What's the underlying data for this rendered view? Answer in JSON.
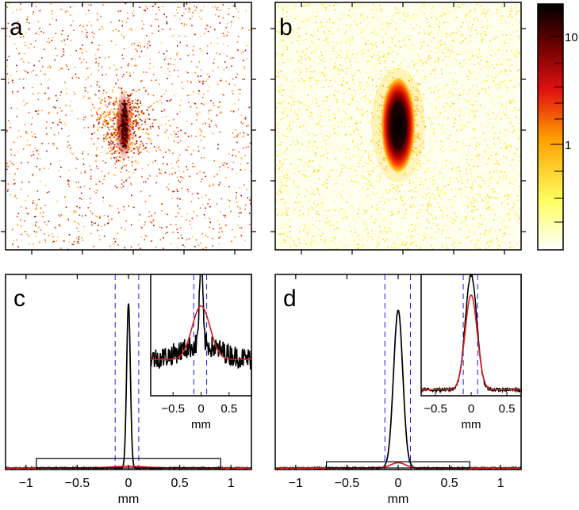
{
  "figure": {
    "panel_labels": [
      "a",
      "b",
      "c",
      "d"
    ],
    "colorbar": {
      "colormap": "hot (white-yellow-red-black)",
      "scale": "log",
      "tick_labels": [
        "10",
        "1"
      ]
    },
    "colors": {
      "profile": "#000000",
      "fit": "#d81e1e",
      "window": "#1a1aff"
    }
  },
  "chart_data": [
    {
      "panel": "a",
      "type": "heatmap",
      "description_visible": "sparse noisy image with narrow vertical elongated central spot",
      "spot": {
        "x": 0.0,
        "y": 0.0
      }
    },
    {
      "panel": "b",
      "type": "heatmap",
      "description_visible": "smooth image with elongated vertical ellipse on yellow background",
      "spot": {
        "x": 0.0,
        "y": 0.0
      }
    },
    {
      "panel": "c",
      "type": "line",
      "xlabel": "mm",
      "xlim": [
        -1.2,
        1.2
      ],
      "ylim": [
        0,
        1.0
      ],
      "xticks": [
        -1,
        -0.5,
        0,
        0.5,
        1
      ],
      "xtick_labels": [
        "−1",
        "−0.5",
        "0",
        "0.5",
        "1"
      ],
      "series": [
        {
          "name": "profile",
          "color": "#000000",
          "peak_x": 0.0,
          "peak": 0.94,
          "width": 0.018,
          "baseline": 0.0
        },
        {
          "name": "fit",
          "color": "#d81e1e",
          "peak_x": 0.0,
          "peak": 0.01,
          "width": 0.16,
          "baseline": 0.0
        }
      ],
      "window_lines": [
        -0.13,
        0.1
      ],
      "zoom_box": {
        "x": [
          -0.9,
          0.9
        ],
        "y": [
          0.0,
          0.04
        ]
      },
      "inset": {
        "xlim": [
          -0.9,
          0.9
        ],
        "xticks": [
          -0.5,
          0,
          0.5
        ],
        "xtick_labels": [
          "−0.5",
          "0",
          "0.5"
        ],
        "xlabel": "mm",
        "window_lines": [
          -0.13,
          0.1
        ],
        "series": [
          {
            "name": "profile",
            "color": "#000000",
            "peak": 0.7,
            "width": 0.15,
            "baseline": 0.3,
            "noise": 0.09
          },
          {
            "name": "fit",
            "color": "#d81e1e",
            "peak": 0.44,
            "width": 0.16,
            "baseline": 0.3
          }
        ]
      }
    },
    {
      "panel": "d",
      "type": "line",
      "xlabel": "mm",
      "xlim": [
        -1.2,
        1.2
      ],
      "ylim": [
        0,
        1.0
      ],
      "xticks": [
        -1,
        -0.5,
        0,
        0.5,
        1
      ],
      "xtick_labels": [
        "−1",
        "−0.5",
        "0",
        "0.5",
        "1"
      ],
      "series": [
        {
          "name": "profile",
          "color": "#000000",
          "peak_x": 0.0,
          "peak": 0.9,
          "width": 0.045,
          "baseline": 0.0
        },
        {
          "name": "fit",
          "color": "#d81e1e",
          "peak_x": 0.0,
          "peak": 0.03,
          "width": 0.07,
          "baseline": 0.0
        }
      ],
      "window_lines": [
        -0.13,
        0.12
      ],
      "zoom_box": {
        "x": [
          -0.7,
          0.7
        ],
        "y": [
          0.0,
          0.022
        ]
      },
      "inset": {
        "xlim": [
          -0.7,
          0.7
        ],
        "xticks": [
          -0.5,
          0,
          0.5
        ],
        "xtick_labels": [
          "−0.5",
          "0",
          "0.5"
        ],
        "xlabel": "mm",
        "window_lines": [
          -0.11,
          0.09
        ],
        "series": [
          {
            "name": "profile",
            "color": "#000000",
            "peak": 0.95,
            "width": 0.08,
            "baseline": 0.05,
            "noise": 0.012
          },
          {
            "name": "fit",
            "color": "#d81e1e",
            "peak": 0.78,
            "width": 0.085,
            "baseline": 0.05
          }
        ]
      }
    }
  ]
}
